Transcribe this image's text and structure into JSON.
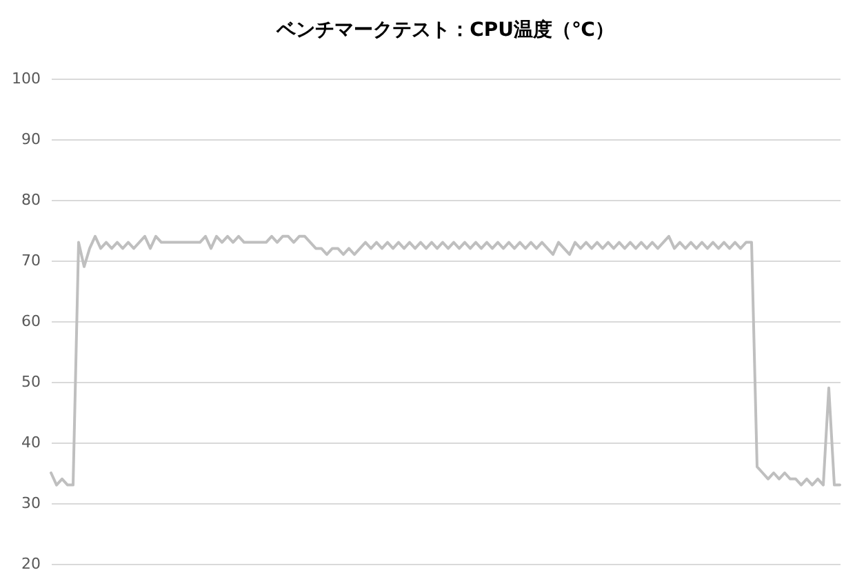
{
  "chart_data": {
    "type": "line",
    "title": "ベンチマークテスト：CPU温度（℃）",
    "categories": [
      null,
      null,
      null,
      null,
      null,
      null,
      null,
      null,
      null,
      null,
      null,
      null,
      null,
      null,
      null,
      null,
      null,
      null,
      null,
      null,
      null,
      null,
      null,
      null,
      null,
      null,
      null,
      null,
      null,
      null,
      null,
      null,
      null,
      null,
      null,
      null,
      null,
      null,
      null,
      null,
      null,
      null,
      null,
      null,
      null,
      null,
      null,
      null,
      null,
      null,
      null,
      null,
      null,
      null,
      null,
      null,
      null,
      null,
      null,
      null,
      null,
      null,
      null,
      null,
      null,
      null,
      null,
      null,
      null,
      null,
      null,
      null,
      null,
      null,
      null,
      null,
      null,
      null,
      null,
      null,
      null,
      null,
      null,
      null,
      null,
      null,
      null,
      null,
      null,
      null,
      null,
      null,
      null,
      null,
      null,
      null,
      null,
      null,
      null,
      null,
      null,
      null,
      null,
      null,
      null,
      null,
      null,
      null,
      null,
      null,
      null,
      null,
      null,
      null,
      null,
      null,
      null,
      null,
      null,
      null,
      null,
      null,
      null,
      null,
      null,
      null,
      null,
      null,
      null,
      null,
      null,
      null,
      null,
      null,
      null,
      null,
      null,
      null,
      null,
      null,
      null,
      null,
      null,
      null
    ],
    "series": [
      {
        "color": "#bfbfbf",
        "values": [
          35,
          33,
          34,
          33,
          33,
          73,
          69,
          72,
          74,
          72,
          73,
          72,
          73,
          72,
          73,
          72,
          73,
          74,
          72,
          74,
          73,
          73,
          73,
          73,
          73,
          73,
          73,
          73,
          74,
          72,
          74,
          73,
          74,
          73,
          74,
          73,
          73,
          73,
          73,
          73,
          74,
          73,
          74,
          74,
          73,
          74,
          74,
          73,
          72,
          72,
          71,
          72,
          72,
          71,
          72,
          71,
          72,
          73,
          72,
          73,
          72,
          73,
          72,
          73,
          72,
          73,
          72,
          73,
          72,
          73,
          72,
          73,
          72,
          73,
          72,
          73,
          72,
          73,
          72,
          73,
          72,
          73,
          72,
          73,
          72,
          73,
          72,
          73,
          72,
          73,
          72,
          71,
          73,
          72,
          71,
          73,
          72,
          73,
          72,
          73,
          72,
          73,
          72,
          73,
          72,
          73,
          72,
          73,
          72,
          73,
          72,
          73,
          74,
          72,
          73,
          72,
          73,
          72,
          73,
          72,
          73,
          72,
          73,
          72,
          73,
          72,
          73,
          73,
          36,
          35,
          34,
          35,
          34,
          35,
          34,
          34,
          33,
          34,
          33,
          34,
          33,
          49,
          33,
          33
        ]
      }
    ],
    "ylim": [
      20,
      100
    ],
    "yticks": [
      20,
      30,
      40,
      50,
      60,
      70,
      80,
      90,
      100
    ],
    "grid": "y",
    "tick_labels": "y",
    "marker": "none",
    "line_style": "solid"
  }
}
